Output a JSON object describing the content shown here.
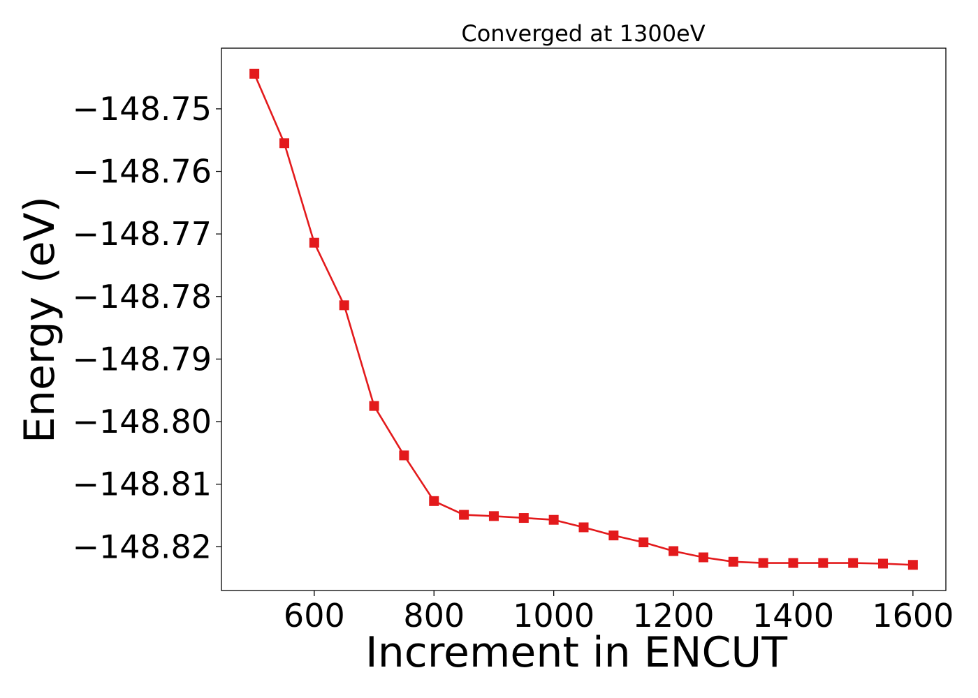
{
  "chart_data": {
    "type": "line",
    "title": "Converged at 1300eV",
    "xlabel": "Increment in ENCUT",
    "ylabel": "Energy (eV)",
    "xlim": [
      445,
      1655
    ],
    "ylim": [
      -148.827,
      -148.7403
    ],
    "x_ticks": [
      600,
      800,
      1000,
      1200,
      1400,
      1600
    ],
    "x_tick_labels": [
      "600",
      "800",
      "1000",
      "1200",
      "1400",
      "1600"
    ],
    "y_ticks": [
      -148.75,
      -148.76,
      -148.77,
      -148.78,
      -148.79,
      -148.8,
      -148.81,
      -148.82
    ],
    "y_tick_labels": [
      "−148.75",
      "−148.76",
      "−148.77",
      "−148.78",
      "−148.79",
      "−148.80",
      "−148.81",
      "−148.82"
    ],
    "grid": false,
    "marker": "square",
    "series": [
      {
        "color": "#e31a1c",
        "x": [
          500,
          550,
          600,
          650,
          700,
          750,
          800,
          850,
          900,
          950,
          1000,
          1050,
          1100,
          1150,
          1200,
          1250,
          1300,
          1350,
          1400,
          1450,
          1500,
          1550,
          1600
        ],
        "y": [
          -148.7444,
          -148.7555,
          -148.7714,
          -148.7814,
          -148.7975,
          -148.8054,
          -148.8127,
          -148.8149,
          -148.8151,
          -148.8154,
          -148.8157,
          -148.8169,
          -148.8182,
          -148.8193,
          -148.8207,
          -148.8217,
          -148.8224,
          -148.8226,
          -148.8226,
          -148.8226,
          -148.8226,
          -148.8227,
          -148.8229
        ]
      }
    ]
  }
}
